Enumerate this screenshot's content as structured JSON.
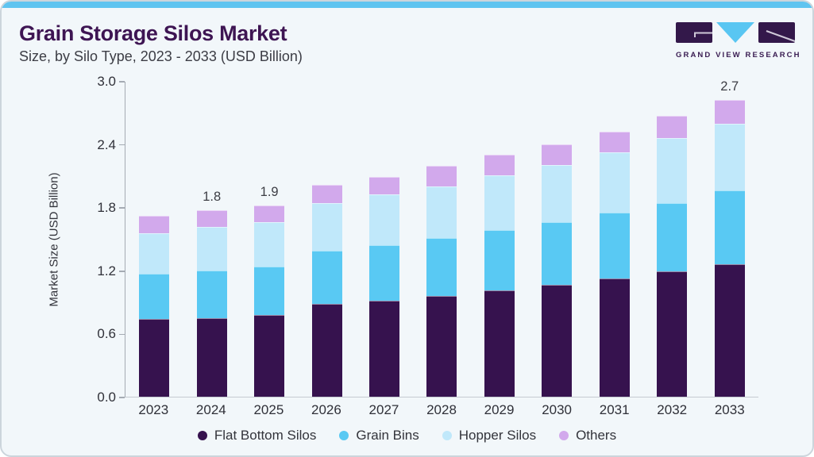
{
  "page": {
    "background": "#f2f7fa",
    "accent_color": "#5fc4f0",
    "border_color": "#ccd5dc"
  },
  "header": {
    "title": "Grain Storage Silos Market",
    "subtitle": "Size, by Silo Type, 2023 - 2033 (USD Billion)",
    "title_color": "#3e1553"
  },
  "logo": {
    "text": "GRAND VIEW RESEARCH",
    "purple": "#33184a",
    "blue": "#59c6f2"
  },
  "chart_data": {
    "type": "bar",
    "stacked": true,
    "title": "Grain Storage Silos Market Size, by Silo Type, 2023 - 2033 (USD Billion)",
    "ylabel": "Market Size (USD Billion)",
    "xlabel": "",
    "ylim": [
      0,
      3.0
    ],
    "yticks": [
      "0.0",
      "0.6",
      "1.2",
      "1.8",
      "2.4",
      "3.0"
    ],
    "grid": false,
    "legend_position": "bottom",
    "categories": [
      "2023",
      "2024",
      "2025",
      "2026",
      "2027",
      "2028",
      "2029",
      "2030",
      "2031",
      "2032",
      "2033"
    ],
    "series": [
      {
        "name": "Flat Bottom Silos",
        "color": "#36124e",
        "values": [
          0.74,
          0.75,
          0.78,
          0.88,
          0.91,
          0.96,
          1.01,
          1.06,
          1.12,
          1.19,
          1.26
        ]
      },
      {
        "name": "Grain Bins",
        "color": "#59c9f3",
        "values": [
          0.43,
          0.45,
          0.46,
          0.51,
          0.53,
          0.55,
          0.57,
          0.6,
          0.63,
          0.65,
          0.7
        ]
      },
      {
        "name": "Hopper Silos",
        "color": "#c0e8fa",
        "values": [
          0.38,
          0.41,
          0.42,
          0.45,
          0.48,
          0.49,
          0.52,
          0.54,
          0.57,
          0.62,
          0.63
        ]
      },
      {
        "name": "Others",
        "color": "#d2a9ec",
        "values": [
          0.17,
          0.16,
          0.16,
          0.17,
          0.17,
          0.19,
          0.2,
          0.2,
          0.2,
          0.21,
          0.23
        ]
      }
    ],
    "bar_total_labels": {
      "2024": "1.8",
      "2025": "1.9",
      "2033": "2.7"
    }
  }
}
